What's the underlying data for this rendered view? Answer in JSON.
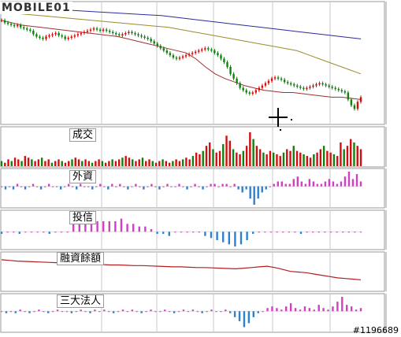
{
  "watermark": "MOBILE01",
  "image_id": "#1196689",
  "chart_data": [
    {
      "type": "line",
      "name": "price",
      "title": "",
      "note": "candlestick price panel with moving averages; no axis labels visible",
      "ylim": [
        0,
        100
      ],
      "candles": [
        88,
        86,
        85,
        84,
        83,
        84,
        82,
        81,
        80,
        79,
        76,
        74,
        73,
        72,
        74,
        75,
        76,
        77,
        75,
        74,
        72,
        73,
        74,
        75,
        76,
        77,
        78,
        79,
        80,
        81,
        80,
        79,
        80,
        79,
        78,
        77,
        76,
        75,
        76,
        77,
        78,
        77,
        76,
        75,
        74,
        73,
        72,
        70,
        68,
        66,
        64,
        62,
        60,
        58,
        56,
        55,
        56,
        57,
        58,
        59,
        60,
        61,
        62,
        63,
        64,
        63,
        62,
        60,
        58,
        55,
        52,
        48,
        42,
        38,
        34,
        30,
        28,
        26,
        25,
        26,
        28,
        30,
        32,
        34,
        36,
        38,
        39,
        38,
        37,
        35,
        34,
        33,
        32,
        31,
        30,
        29,
        30,
        31,
        32,
        33,
        34,
        33,
        32,
        31,
        30,
        29,
        28,
        27,
        26,
        20,
        15,
        12,
        18,
        22
      ],
      "ma_blue": [
        100,
        99,
        98,
        97,
        96,
        95,
        94,
        93,
        92,
        90,
        88,
        86,
        84,
        82,
        80,
        78,
        76,
        74,
        72
      ],
      "ma_olive": [
        95,
        94,
        93,
        92,
        91,
        90,
        89,
        88,
        87,
        86,
        85,
        84,
        83,
        82,
        80,
        78,
        76,
        74,
        72,
        70,
        68,
        66,
        64,
        62,
        58,
        54,
        50,
        46,
        42
      ],
      "ma_dark_red": [
        88,
        86,
        84,
        83,
        82,
        81,
        80,
        79,
        78,
        77,
        76,
        75,
        74,
        72,
        70,
        68,
        66,
        64,
        62,
        60,
        55,
        48,
        42,
        38,
        35,
        32,
        30,
        28,
        27,
        26,
        26,
        25,
        24,
        23,
        22,
        22,
        21,
        20
      ]
    },
    {
      "type": "bar",
      "name": "volume",
      "label": "成交",
      "values": [
        3,
        2,
        4,
        3,
        5,
        4,
        3,
        6,
        5,
        4,
        3,
        4,
        5,
        3,
        4,
        2,
        3,
        4,
        3,
        2,
        3,
        4,
        5,
        4,
        3,
        4,
        3,
        2,
        3,
        4,
        3,
        2,
        3,
        4,
        3,
        4,
        5,
        6,
        5,
        4,
        3,
        4,
        5,
        3,
        4,
        3,
        2,
        3,
        4,
        3,
        2,
        3,
        4,
        3,
        4,
        5,
        4,
        6,
        8,
        7,
        9,
        12,
        14,
        10,
        8,
        9,
        13,
        18,
        15,
        10,
        8,
        7,
        9,
        12,
        20,
        16,
        12,
        10,
        8,
        7,
        9,
        8,
        7,
        6,
        8,
        10,
        9,
        12,
        9,
        8,
        7,
        6,
        5,
        7,
        8,
        10,
        12,
        9,
        8,
        7,
        6,
        14,
        10,
        12,
        16,
        14,
        12,
        10
      ]
    },
    {
      "type": "bar",
      "name": "foreign",
      "label": "外資",
      "values": [
        0,
        -1,
        0,
        -1,
        1,
        0,
        -1,
        0,
        1,
        0,
        -1,
        0,
        1,
        0,
        0,
        -1,
        0,
        1,
        0,
        -1,
        1,
        0,
        0,
        -1,
        0,
        1,
        0,
        -1,
        1,
        0,
        1,
        0,
        -1,
        0,
        1,
        0,
        -1,
        0,
        1,
        0,
        -1,
        0,
        1,
        0,
        0,
        1,
        0,
        -1,
        0,
        1,
        0,
        -1,
        0,
        1,
        1,
        0,
        1,
        1,
        0,
        1,
        -1,
        -2,
        -1,
        -4,
        -6,
        -4,
        -2,
        -1,
        0,
        1,
        2,
        2,
        1,
        1,
        3,
        4,
        2,
        1,
        3,
        2,
        1,
        1,
        2,
        3,
        2,
        1,
        2,
        4,
        6,
        3,
        5,
        2
      ]
    },
    {
      "type": "bar",
      "name": "investment_trust",
      "label": "投信",
      "values": [
        -1,
        0,
        0,
        -1,
        0,
        0,
        0,
        0,
        -1,
        0,
        0,
        0,
        4,
        3,
        4,
        4,
        4,
        4,
        4,
        4,
        5,
        3,
        3,
        2,
        2,
        1,
        -1,
        -1,
        -2,
        0,
        0,
        0,
        0,
        0,
        -2,
        -3,
        -4,
        -5,
        -6,
        -7,
        -6,
        -4,
        -1,
        0,
        0,
        0,
        0,
        0,
        0,
        0,
        -1,
        0,
        0,
        0,
        0,
        0,
        0,
        0,
        0,
        0,
        0
      ]
    },
    {
      "type": "line",
      "name": "margin_balance",
      "label": "融資餘額",
      "values": [
        88,
        86,
        84,
        83,
        82,
        81,
        80,
        79,
        78,
        77,
        76,
        75,
        74,
        73,
        72,
        72,
        71,
        70,
        70,
        69,
        68,
        67,
        66,
        66,
        65,
        64,
        64,
        63,
        62,
        61,
        60,
        62,
        64,
        66,
        68,
        64,
        58,
        52,
        50,
        48,
        44,
        40,
        36,
        32,
        30,
        28,
        26
      ]
    },
    {
      "type": "bar",
      "name": "three_institutions",
      "label": "三大法人",
      "values": [
        0,
        -1,
        0,
        -1,
        1,
        0,
        -1,
        0,
        1,
        0,
        -1,
        0,
        1,
        0,
        0,
        -1,
        0,
        1,
        0,
        -1,
        1,
        0,
        1,
        0,
        -1,
        0,
        1,
        0,
        1,
        0,
        -1,
        0,
        1,
        0,
        0,
        1,
        0,
        -1,
        0,
        1,
        0,
        1,
        0,
        -1,
        0,
        1,
        0,
        0,
        1,
        -1,
        -3,
        -5,
        -8,
        -6,
        -3,
        -1,
        0,
        2,
        3,
        2,
        1,
        3,
        5,
        2,
        1,
        3,
        2,
        1,
        4,
        2,
        1,
        3,
        6,
        9,
        4,
        3,
        1,
        2
      ]
    }
  ]
}
